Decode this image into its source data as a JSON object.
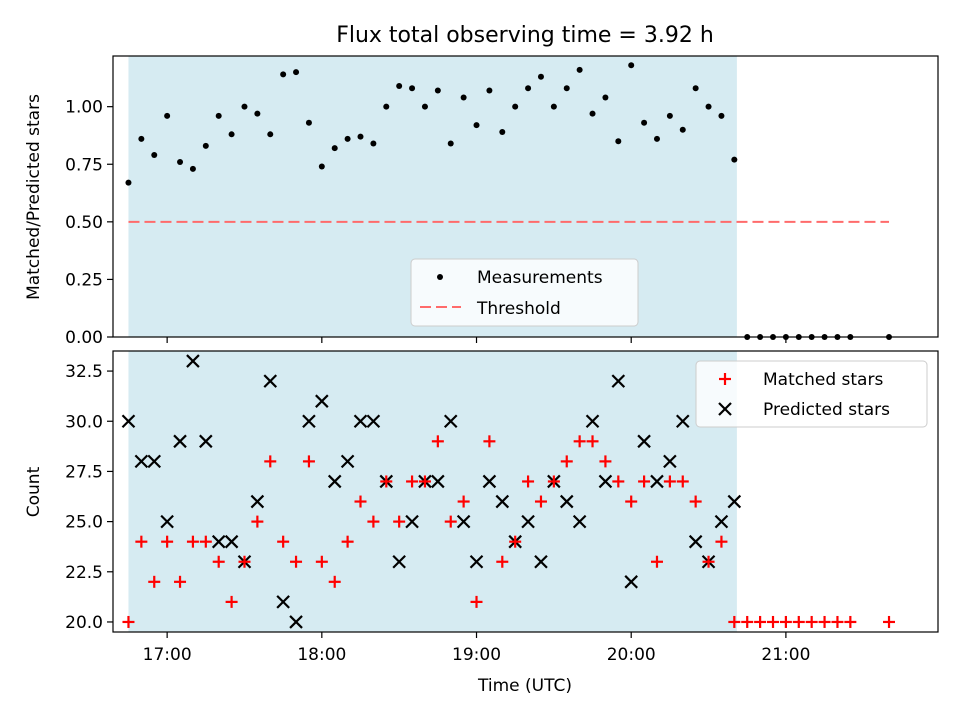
{
  "chart_data": [
    {
      "type": "scatter",
      "title": "Flux total observing time = 3.92 h",
      "xlabel": "",
      "ylabel": "Matched/Predicted stars",
      "ylim": [
        0,
        1.22
      ],
      "xlim": [
        "16:39",
        "21:59"
      ],
      "y_ticks": [
        "0.00",
        "0.25",
        "0.50",
        "0.75",
        "1.00"
      ],
      "shaded_span": [
        "16:45",
        "20:41"
      ],
      "legend_position": "lower center",
      "series": [
        {
          "name": "Measurements",
          "marker": "dot",
          "color": "#000000",
          "x": [
            "16:45",
            "16:50",
            "16:55",
            "17:00",
            "17:05",
            "17:10",
            "17:15",
            "17:20",
            "17:25",
            "17:30",
            "17:35",
            "17:40",
            "17:45",
            "17:50",
            "17:55",
            "18:00",
            "18:05",
            "18:10",
            "18:15",
            "18:20",
            "18:25",
            "18:30",
            "18:35",
            "18:40",
            "18:45",
            "18:50",
            "18:55",
            "19:00",
            "19:05",
            "19:10",
            "19:15",
            "19:20",
            "19:25",
            "19:30",
            "19:35",
            "19:40",
            "19:45",
            "19:50",
            "19:55",
            "20:00",
            "20:05",
            "20:10",
            "20:15",
            "20:20",
            "20:25",
            "20:30",
            "20:35",
            "20:40",
            "20:45",
            "20:50",
            "20:55",
            "21:00",
            "21:05",
            "21:10",
            "21:15",
            "21:20",
            "21:25",
            "21:40"
          ],
          "y": [
            0.67,
            0.86,
            0.79,
            0.96,
            0.76,
            0.73,
            0.83,
            0.96,
            0.88,
            1.0,
            0.97,
            0.88,
            1.14,
            1.15,
            0.93,
            0.74,
            0.82,
            0.86,
            0.87,
            0.84,
            1.0,
            1.09,
            1.08,
            1.0,
            1.07,
            0.84,
            1.04,
            0.92,
            1.07,
            0.89,
            1.0,
            1.08,
            1.13,
            1.0,
            1.08,
            1.16,
            0.97,
            1.04,
            0.85,
            1.18,
            0.93,
            0.86,
            0.96,
            0.9,
            1.08,
            1.0,
            0.96,
            0.77,
            0,
            0,
            0,
            0,
            0,
            0,
            0,
            0,
            0,
            0
          ]
        },
        {
          "name": "Threshold",
          "style": "dashed",
          "color": "#ff6b6b",
          "x": [
            "16:45",
            "21:40"
          ],
          "y": [
            0.5,
            0.5
          ]
        }
      ]
    },
    {
      "type": "scatter",
      "title": "",
      "xlabel": "Time (UTC)",
      "ylabel": "Count",
      "ylim": [
        19.5,
        33.5
      ],
      "xlim": [
        "16:39",
        "21:59"
      ],
      "x_ticks": [
        "17:00",
        "18:00",
        "19:00",
        "20:00",
        "21:00"
      ],
      "y_ticks": [
        "20.0",
        "22.5",
        "25.0",
        "27.5",
        "30.0",
        "32.5"
      ],
      "shaded_span": [
        "16:45",
        "20:41"
      ],
      "legend_position": "upper right",
      "series": [
        {
          "name": "Matched stars",
          "marker": "plus",
          "color": "#ff0000",
          "x": [
            "16:45",
            "16:50",
            "16:55",
            "17:00",
            "17:05",
            "17:10",
            "17:15",
            "17:20",
            "17:25",
            "17:30",
            "17:35",
            "17:40",
            "17:45",
            "17:50",
            "17:55",
            "18:00",
            "18:05",
            "18:10",
            "18:15",
            "18:20",
            "18:25",
            "18:30",
            "18:35",
            "18:40",
            "18:45",
            "18:50",
            "18:55",
            "19:00",
            "19:05",
            "19:10",
            "19:15",
            "19:20",
            "19:25",
            "19:30",
            "19:35",
            "19:40",
            "19:45",
            "19:50",
            "19:55",
            "20:00",
            "20:05",
            "20:10",
            "20:15",
            "20:20",
            "20:25",
            "20:30",
            "20:35",
            "20:40",
            "20:45",
            "20:50",
            "20:55",
            "21:00",
            "21:05",
            "21:10",
            "21:15",
            "21:20",
            "21:25",
            "21:40"
          ],
          "y": [
            20,
            24,
            22,
            24,
            22,
            24,
            24,
            23,
            21,
            23,
            25,
            28,
            24,
            23,
            28,
            23,
            22,
            24,
            26,
            25,
            27,
            25,
            27,
            27,
            29,
            25,
            26,
            21,
            29,
            23,
            24,
            27,
            26,
            27,
            28,
            29,
            29,
            28,
            27,
            26,
            27,
            23,
            27,
            27,
            26,
            23,
            24,
            20,
            20,
            20,
            20,
            20,
            20,
            20,
            20,
            20,
            20,
            20
          ]
        },
        {
          "name": "Predicted stars",
          "marker": "x",
          "color": "#000000",
          "x": [
            "16:45",
            "16:50",
            "16:55",
            "17:00",
            "17:05",
            "17:10",
            "17:15",
            "17:20",
            "17:25",
            "17:30",
            "17:35",
            "17:40",
            "17:45",
            "17:50",
            "17:55",
            "18:00",
            "18:05",
            "18:10",
            "18:15",
            "18:20",
            "18:25",
            "18:30",
            "18:35",
            "18:40",
            "18:45",
            "18:50",
            "18:55",
            "19:00",
            "19:05",
            "19:10",
            "19:15",
            "19:20",
            "19:25",
            "19:30",
            "19:35",
            "19:40",
            "19:45",
            "19:50",
            "19:55",
            "20:00",
            "20:05",
            "20:10",
            "20:15",
            "20:20",
            "20:25",
            "20:30",
            "20:35",
            "20:40"
          ],
          "y": [
            30,
            28,
            28,
            25,
            29,
            33,
            29,
            24,
            24,
            23,
            26,
            32,
            21,
            20,
            30,
            31,
            27,
            28,
            30,
            30,
            27,
            23,
            25,
            27,
            27,
            30,
            25,
            23,
            27,
            26,
            24,
            25,
            23,
            27,
            26,
            25,
            30,
            27,
            32,
            22,
            29,
            27,
            28,
            30,
            24,
            23,
            25,
            26
          ]
        }
      ]
    }
  ]
}
